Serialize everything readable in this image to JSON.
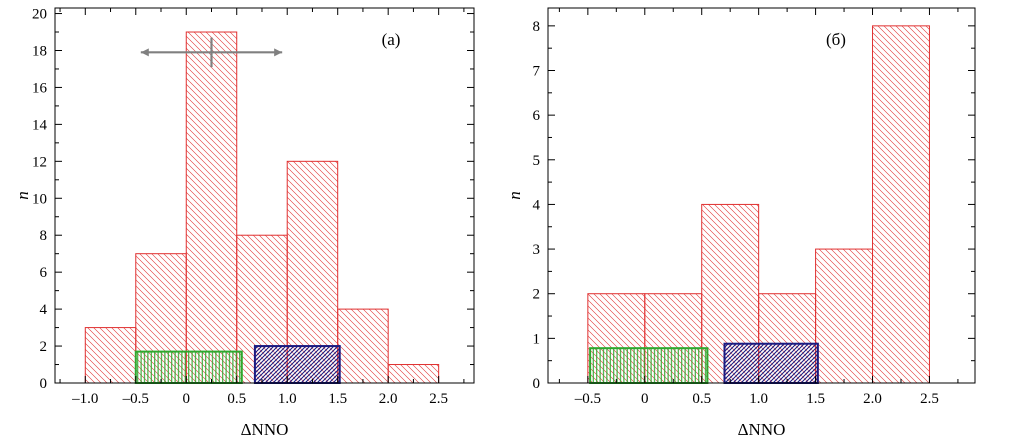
{
  "chart_data": [
    {
      "type": "bar",
      "panel_label": "(а)",
      "xlabel": "ΔNNO",
      "ylabel": "n",
      "xlim": [
        -1.3,
        2.85
      ],
      "ylim": [
        0,
        20.3
      ],
      "xticks": [
        -1.0,
        -0.5,
        0,
        0.5,
        1.0,
        1.5,
        2.0,
        2.5
      ],
      "xtick_labels": [
        "–1.0",
        "–0.5",
        "0",
        "0.5",
        "1.0",
        "1.5",
        "2.0",
        "2.5"
      ],
      "yticks": [
        0,
        2,
        4,
        6,
        8,
        10,
        12,
        14,
        16,
        18,
        20
      ],
      "ytick_labels": [
        "0",
        "2",
        "4",
        "6",
        "8",
        "10",
        "12",
        "14",
        "16",
        "18",
        "20"
      ],
      "series": [
        {
          "bins": [
            [
              -1.0,
              -0.5
            ],
            [
              -0.5,
              0
            ],
            [
              0,
              0.5
            ],
            [
              0.5,
              1.0
            ],
            [
              1.0,
              1.5
            ],
            [
              1.5,
              2.0
            ],
            [
              2.0,
              2.5
            ]
          ],
          "values": [
            3,
            7,
            19,
            8,
            12,
            4,
            1
          ],
          "color": "#e03030",
          "hatch": "diagonal-back"
        }
      ],
      "ranges": [
        {
          "x0": -0.5,
          "x1": 0.55,
          "height": 1.7,
          "color": "#2ea82e",
          "hatch": "vertical"
        },
        {
          "x0": 0.68,
          "x1": 1.52,
          "height": 2.0,
          "color": "#1a1a80",
          "hatch": "diagonal-forward"
        }
      ],
      "error_bar": {
        "x": 0.25,
        "y": 17.9,
        "x_err": 0.7,
        "y_err": 0.8,
        "color": "#808080"
      }
    },
    {
      "type": "bar",
      "panel_label": "(б)",
      "xlabel": "ΔNNO",
      "ylabel": "n",
      "xlim": [
        -0.85,
        2.9
      ],
      "ylim": [
        0,
        8.4
      ],
      "xticks": [
        -0.5,
        0,
        0.5,
        1.0,
        1.5,
        2.0,
        2.5
      ],
      "xtick_labels": [
        "–0.5",
        "0",
        "0.5",
        "1.0",
        "1.5",
        "2.0",
        "2.5"
      ],
      "yticks": [
        0,
        1,
        2,
        3,
        4,
        5,
        6,
        7,
        8
      ],
      "ytick_labels": [
        "0",
        "1",
        "2",
        "3",
        "4",
        "5",
        "6",
        "7",
        "8"
      ],
      "series": [
        {
          "bins": [
            [
              -0.5,
              0
            ],
            [
              0,
              0.5
            ],
            [
              0.5,
              1.0
            ],
            [
              1.0,
              1.5
            ],
            [
              1.5,
              2.0
            ],
            [
              2.0,
              2.5
            ]
          ],
          "values": [
            2,
            2,
            4,
            2,
            3,
            8
          ],
          "color": "#e03030",
          "hatch": "diagonal-back"
        }
      ],
      "ranges": [
        {
          "x0": -0.48,
          "x1": 0.55,
          "height": 0.78,
          "color": "#2ea82e",
          "hatch": "vertical"
        },
        {
          "x0": 0.7,
          "x1": 1.52,
          "height": 0.88,
          "color": "#1a1a80",
          "hatch": "diagonal-forward"
        }
      ]
    }
  ]
}
